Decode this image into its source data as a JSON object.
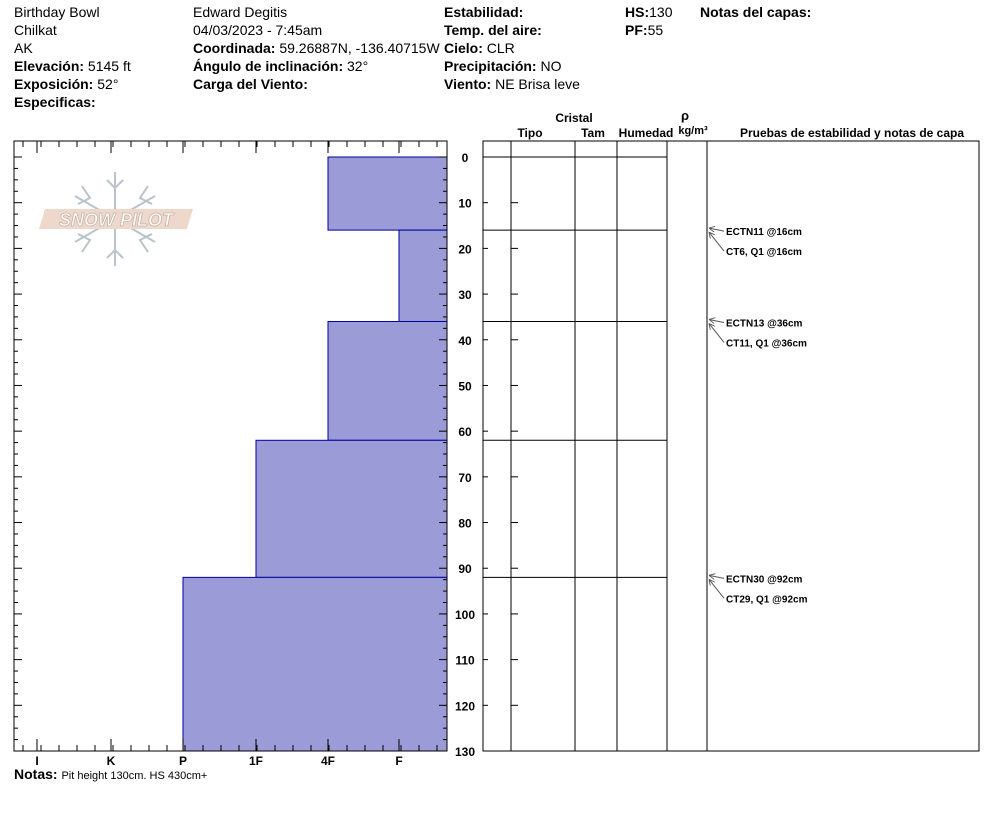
{
  "header": {
    "location": "Birthday Bowl",
    "range": "Chilkat",
    "state": "AK",
    "elevation_label": "Elevación:",
    "elevation_value": "5145 ft",
    "aspect_label": "Exposición:",
    "aspect_value": "52°",
    "specifics_label": "Especificas:",
    "observer": "Edward Degitis",
    "datetime": "04/03/2023 - 7:45am",
    "coord_label": "Coordinada:",
    "coord_value": "59.26887N, -136.40715W",
    "slope_label": "Ángulo de inclinación:",
    "slope_value": "32°",
    "wind_load_label": "Carga del Viento:",
    "stability_label": "Estabilidad:",
    "air_temp_label": "Temp. del aire:",
    "sky_label": "Cielo:",
    "sky_value": "CLR",
    "precip_label": "Precipitación:",
    "precip_value": "NO",
    "wind_label": "Viento:",
    "wind_value": "NE Brisa leve",
    "hs_label": "HS:",
    "hs_value": "130",
    "pf_label": "PF:",
    "pf_value": "55",
    "layer_notes_label": "Notas del capas:"
  },
  "logo": {
    "text": "SNOW PILOT"
  },
  "table_headers": {
    "crystal": "Cristal",
    "type": "Tipo",
    "size": "Tam",
    "moisture": "Humedad",
    "rho": "ρ",
    "density_unit": "kg/m³",
    "tests": "Pruebas de estabilidad y notas de capa"
  },
  "notes": {
    "label": "Notas:",
    "value": "Pit height 130cm. HS 430cm+"
  },
  "colors": {
    "layer_fill": "#9b9bd7",
    "layer_stroke": "#0000a0"
  },
  "chart_data": {
    "type": "bar",
    "y_axis": {
      "range": [
        0,
        130
      ],
      "ticks": [
        0,
        10,
        20,
        30,
        40,
        50,
        60,
        70,
        80,
        90,
        100,
        110,
        120,
        130
      ],
      "inverted": true
    },
    "x_axis": {
      "categories": [
        "I",
        "K",
        "P",
        "1F",
        "4F",
        "F"
      ]
    },
    "layers": [
      {
        "top": 0,
        "bottom": 16,
        "hardness": "4F"
      },
      {
        "top": 16,
        "bottom": 36,
        "hardness": "F"
      },
      {
        "top": 36,
        "bottom": 62,
        "hardness": "4F"
      },
      {
        "top": 62,
        "bottom": 92,
        "hardness": "1F"
      },
      {
        "top": 92,
        "bottom": 130,
        "hardness": "P"
      }
    ],
    "layer_boundaries": [
      16,
      36,
      62,
      92
    ],
    "tests": [
      {
        "depth": 16,
        "labels": [
          "ECTN11 @16cm",
          "CT6, Q1 @16cm"
        ]
      },
      {
        "depth": 36,
        "labels": [
          "ECTN13 @36cm",
          "CT11, Q1 @36cm"
        ]
      },
      {
        "depth": 92,
        "labels": [
          "ECTN30 @92cm",
          "CT29, Q1 @92cm"
        ]
      }
    ]
  }
}
